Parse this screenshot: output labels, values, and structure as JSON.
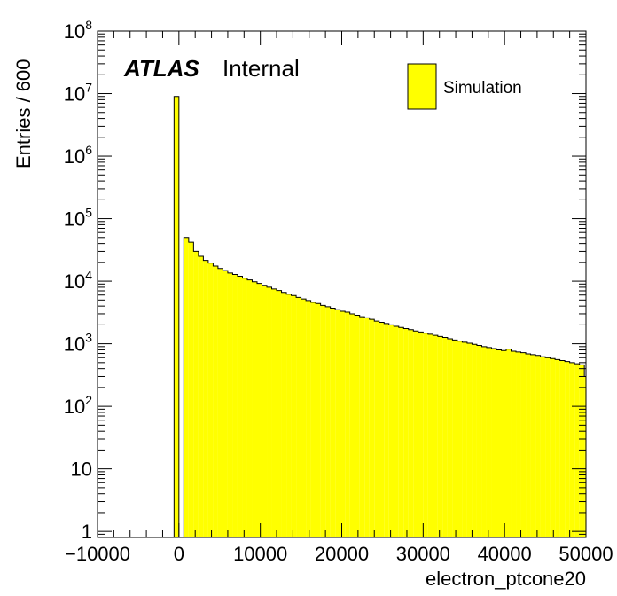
{
  "chart_data": {
    "type": "bar",
    "xlabel": "electron_ptcone20",
    "ylabel": "Entries / 600",
    "xlim": [
      -10000,
      50000
    ],
    "ylim": [
      0.8,
      100000000
    ],
    "log_y": true,
    "grid": false,
    "legend_position": "top-right",
    "bin_width": 600,
    "fill_color": "#ffff00",
    "x_ticks": [
      {
        "value": -10000,
        "label": "−10000"
      },
      {
        "value": 0,
        "label": "0"
      },
      {
        "value": 10000,
        "label": "10000"
      },
      {
        "value": 20000,
        "label": "20000"
      },
      {
        "value": 30000,
        "label": "30000"
      },
      {
        "value": 40000,
        "label": "40000"
      },
      {
        "value": 50000,
        "label": "50000"
      }
    ],
    "y_ticks": [
      {
        "value": 1,
        "label": "1",
        "exp": ""
      },
      {
        "value": 10,
        "label": "10",
        "exp": ""
      },
      {
        "value": 100,
        "label": "10",
        "exp": "2"
      },
      {
        "value": 1000,
        "label": "10",
        "exp": "3"
      },
      {
        "value": 10000,
        "label": "10",
        "exp": "4"
      },
      {
        "value": 100000,
        "label": "10",
        "exp": "5"
      },
      {
        "value": 1000000,
        "label": "10",
        "exp": "6"
      },
      {
        "value": 10000000,
        "label": "10",
        "exp": "7"
      },
      {
        "value": 100000000,
        "label": "10",
        "exp": "8"
      }
    ],
    "atlas_label": "ATLAS",
    "atlas_status": "Internal",
    "series": [
      {
        "name": "Simulation",
        "bin_low_edges": [
          -600,
          600,
          1200,
          1800,
          2400,
          3000,
          3600,
          4200,
          4800,
          5400,
          6000,
          6600,
          7200,
          7800,
          8400,
          9000,
          9600,
          10200,
          10800,
          11400,
          12000,
          12600,
          13200,
          13800,
          14400,
          15000,
          15600,
          16200,
          16800,
          17400,
          18000,
          18600,
          19200,
          19800,
          20400,
          21000,
          21600,
          22200,
          22800,
          23400,
          24000,
          24600,
          25200,
          25800,
          26400,
          27000,
          27600,
          28200,
          28800,
          29400,
          30000,
          30600,
          31200,
          31800,
          32400,
          33000,
          33600,
          34200,
          34800,
          35400,
          36000,
          36600,
          37200,
          37800,
          38400,
          39000,
          39600,
          40200,
          40800,
          41400,
          42000,
          42600,
          43200,
          43800,
          44400,
          45000,
          45600,
          46200,
          46800,
          47400,
          48000,
          48600,
          49200,
          49800
        ],
        "values": [
          9000000,
          50000,
          42000,
          30000,
          25000,
          21500,
          19500,
          17500,
          16000,
          14800,
          13500,
          12800,
          12000,
          11200,
          10500,
          9800,
          9200,
          8600,
          8000,
          7500,
          7100,
          6600,
          6200,
          5900,
          5500,
          5200,
          4900,
          4600,
          4400,
          4100,
          3900,
          3700,
          3500,
          3300,
          3200,
          3000,
          2850,
          2700,
          2600,
          2450,
          2300,
          2200,
          2100,
          2000,
          1900,
          1820,
          1750,
          1680,
          1600,
          1540,
          1480,
          1420,
          1360,
          1310,
          1260,
          1200,
          1150,
          1100,
          1060,
          1020,
          980,
          940,
          900,
          870,
          840,
          800,
          780,
          820,
          760,
          740,
          720,
          690,
          670,
          650,
          620,
          600,
          580,
          560,
          540,
          520,
          500,
          480,
          460,
          300
        ]
      }
    ]
  }
}
